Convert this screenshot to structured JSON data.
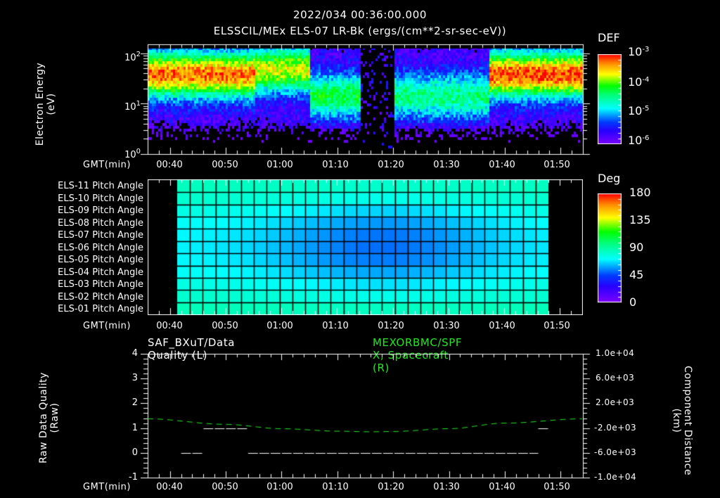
{
  "header": {
    "timestamp": "2022/034 00:36:00.000",
    "subtitle": "ELSSCIL/MEx ELS-07 LR-Bk  (ergs/(cm**2-sr-sec-eV))"
  },
  "time_axis": {
    "label": "GMT(min)",
    "ticks": [
      "00:40",
      "00:50",
      "01:00",
      "01:10",
      "01:20",
      "01:30",
      "01:40",
      "01:50"
    ]
  },
  "panel1": {
    "ylabel_line1": "Electron Energy",
    "ylabel_line2": "(eV)",
    "yticks": [
      {
        "base": "10",
        "exp": "2"
      },
      {
        "base": "10",
        "exp": "1"
      },
      {
        "base": "10",
        "exp": "0"
      }
    ],
    "colorbar": {
      "title": "DEF",
      "labels": [
        {
          "base": "10",
          "exp": "-3"
        },
        {
          "base": "10",
          "exp": "-4"
        },
        {
          "base": "10",
          "exp": "-5"
        },
        {
          "base": "10",
          "exp": "-6"
        }
      ]
    }
  },
  "panel2": {
    "rows": [
      "ELS-11 Pitch Angle",
      "ELS-10 Pitch Angle",
      "ELS-09 Pitch Angle",
      "ELS-08 Pitch Angle",
      "ELS-07 Pitch Angle",
      "ELS-06 Pitch Angle",
      "ELS-05 Pitch Angle",
      "ELS-04 Pitch Angle",
      "ELS-03 Pitch Angle",
      "ELS-02 Pitch Angle",
      "ELS-01 Pitch Angle"
    ],
    "colorbar": {
      "title": "Deg",
      "labels": [
        "180",
        "135",
        "90",
        "45",
        "0"
      ]
    }
  },
  "panel3": {
    "left_title": "SAF_BXuT/Data Quality (L)",
    "right_title": "MEXORBMC/SPF X, Spacecraft (R)",
    "ylabel_left_line1": "Raw Data Quality",
    "ylabel_left_line2": "(Raw)",
    "ylabel_right_line1": "Component Distance",
    "ylabel_right_line2": "(km)",
    "yticks_left": [
      "4",
      "3",
      "2",
      "1",
      "0",
      "-1"
    ],
    "yticks_right": [
      "1.0e+04",
      "6.0e+03",
      "2.0e+03",
      "-2.0e+03",
      "-6.0e+03",
      "-1.0e+04"
    ]
  },
  "colors": {
    "background": "#000000",
    "foreground": "#ffffff",
    "green_series": "#22e822"
  },
  "chart_data": [
    {
      "type": "heatmap",
      "title": "ELSSCIL/MEx ELS-07 LR-Bk (ergs/(cm**2-sr-sec-eV))",
      "xlabel": "GMT(min)",
      "ylabel": "Electron Energy (eV)",
      "x_range": [
        "00:36",
        "01:54"
      ],
      "x_ticks": [
        "00:40",
        "00:50",
        "01:00",
        "01:10",
        "01:20",
        "01:30",
        "01:40",
        "01:50"
      ],
      "y_scale": "log",
      "ylim": [
        1,
        150
      ],
      "colorbar": {
        "label": "DEF",
        "scale": "log",
        "range": [
          1e-06,
          0.001
        ]
      },
      "features": [
        {
          "time_range": [
            "00:36",
            "00:55"
          ],
          "energy_peak_eV": 40,
          "level": 0.0003,
          "desc": "strong band 20-80 eV"
        },
        {
          "time_range": [
            "00:55",
            "01:05"
          ],
          "energy_peak_eV": 50,
          "level": 0.0001,
          "desc": "intermittent band"
        },
        {
          "time_range": [
            "01:05",
            "01:14"
          ],
          "energy_peak_eV": 15,
          "level": 3e-05,
          "desc": "weak lower-energy band"
        },
        {
          "time_range": [
            "01:14",
            "01:20"
          ],
          "energy_peak_eV": null,
          "level": 1e-06,
          "desc": "data gap / very low"
        },
        {
          "time_range": [
            "01:20",
            "01:37"
          ],
          "energy_peak_eV": 15,
          "level": 2e-05,
          "desc": "weak diffuse"
        },
        {
          "time_range": [
            "01:37",
            "01:54"
          ],
          "energy_peak_eV": 40,
          "level": 0.0004,
          "desc": "strong band 20-80 eV"
        }
      ]
    },
    {
      "type": "heatmap",
      "title": "ELS Pitch Angle",
      "xlabel": "GMT(min)",
      "categories": [
        "ELS-11",
        "ELS-10",
        "ELS-09",
        "ELS-08",
        "ELS-07",
        "ELS-06",
        "ELS-05",
        "ELS-04",
        "ELS-03",
        "ELS-02",
        "ELS-01"
      ],
      "x_range": [
        "00:36",
        "01:54"
      ],
      "data_time_range": [
        "00:41",
        "01:48"
      ],
      "colorbar": {
        "label": "Deg",
        "range": [
          0,
          180
        ],
        "ticks": [
          0,
          45,
          90,
          135,
          180
        ]
      },
      "row_pitch_deg_at_edges": [
        85,
        82,
        78,
        74,
        72,
        71,
        72,
        74,
        78,
        82,
        86
      ],
      "row_pitch_deg_at_center": [
        82,
        76,
        66,
        58,
        53,
        52,
        54,
        60,
        68,
        76,
        84
      ]
    },
    {
      "type": "line",
      "title": "SAF_BXuT/Data Quality (L) ; MEXORBMC/SPF X, Spacecraft (R)",
      "xlabel": "GMT(min)",
      "series": [
        {
          "name": "SAF_BXuT/Data Quality",
          "axis": "left",
          "ylabel": "Raw Data Quality (Raw)",
          "ylim": [
            -1,
            4
          ],
          "color": "#ffffff",
          "segments": [
            {
              "x": [
                "00:42",
                "00:46"
              ],
              "y": 0
            },
            {
              "x": [
                "00:46",
                "00:54"
              ],
              "y": 1
            },
            {
              "x": [
                "00:54",
                "01:46"
              ],
              "y": 0
            },
            {
              "x": [
                "01:46",
                "01:48"
              ],
              "y": 1
            }
          ]
        },
        {
          "name": "MEXORBMC/SPF X, Spacecraft",
          "axis": "right",
          "ylabel": "Component Distance (km)",
          "ylim": [
            -10000,
            10000
          ],
          "color": "#22e822",
          "style": "dashed",
          "x": [
            "00:36",
            "00:50",
            "01:00",
            "01:10",
            "01:16",
            "01:20",
            "01:30",
            "01:40",
            "01:54"
          ],
          "y": [
            -500,
            -1400,
            -2100,
            -2500,
            -2600,
            -2550,
            -2100,
            -1200,
            -500
          ]
        }
      ]
    }
  ]
}
